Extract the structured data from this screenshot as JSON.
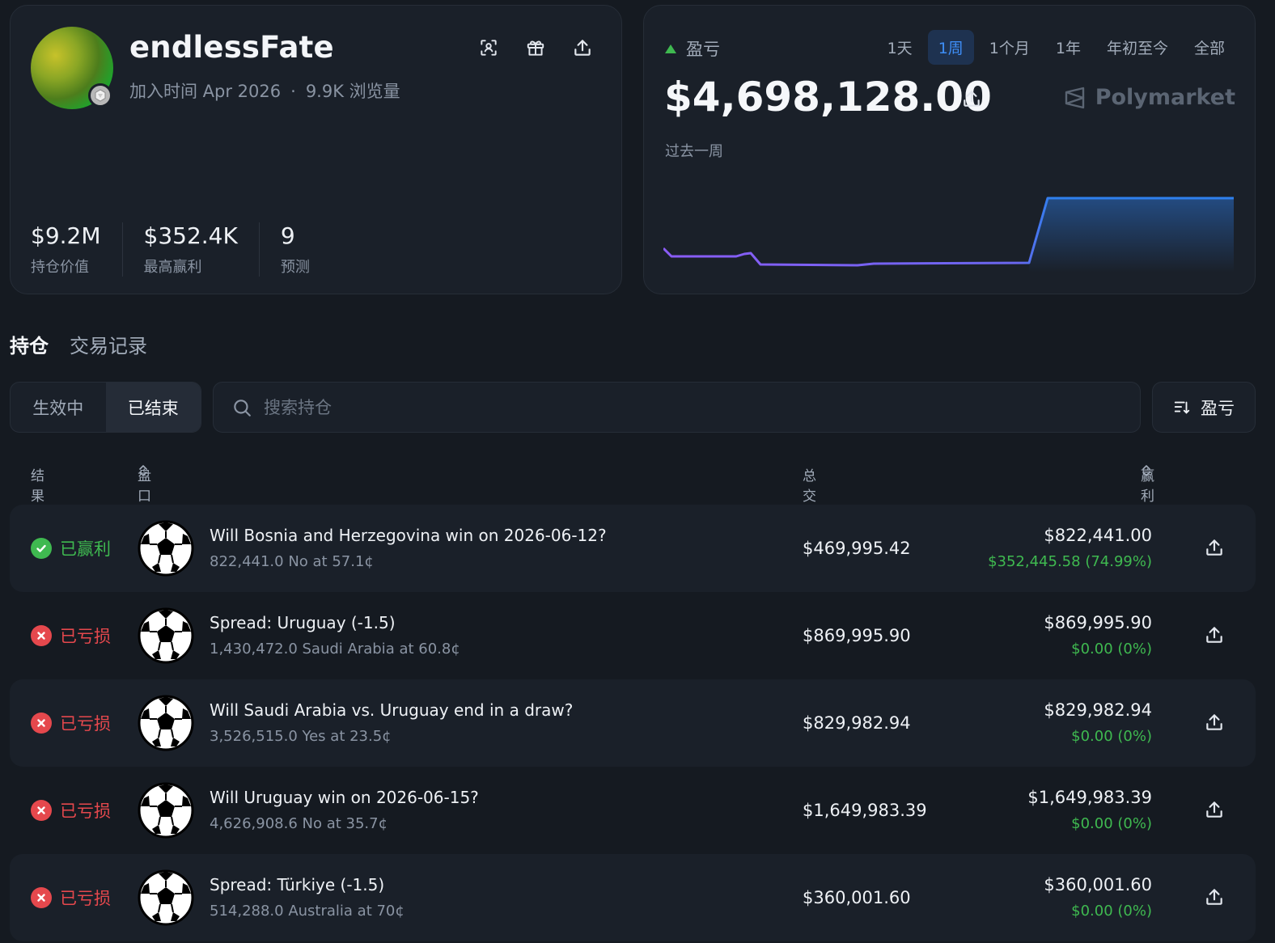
{
  "profile": {
    "username": "endlessFate",
    "joined": "加入时间 Apr 2026",
    "views": "9.9K 浏览量",
    "stats": [
      {
        "value": "$9.2M",
        "label": "持仓价值"
      },
      {
        "value": "$352.4K",
        "label": "最高赢利"
      },
      {
        "value": "9",
        "label": "预测"
      }
    ]
  },
  "pnl": {
    "label": "盈亏",
    "ranges": [
      "1天",
      "1周",
      "1个月",
      "1年",
      "年初至今",
      "全部"
    ],
    "active_range": "1周",
    "value": "$4,698,128.00",
    "brand": "Polymarket",
    "period": "过去一周",
    "line_colors": {
      "start": "#8b5cf6",
      "end": "#2f80ed"
    }
  },
  "tabs": [
    "持仓",
    "交易记录"
  ],
  "segment": [
    "生效中",
    "已结束"
  ],
  "search": {
    "placeholder": "搜索持仓"
  },
  "sort": {
    "label": "盈亏"
  },
  "table": {
    "headers": {
      "result": "结果",
      "market": "盘口",
      "traded": "总交易金额",
      "won": "赢利金额"
    },
    "rows": [
      {
        "status": "已赢利",
        "result": "win",
        "title": "Will Bosnia and Herzegovina win on 2026-06-12?",
        "sub": "822,441.0 No at 57.1¢",
        "traded": "$469,995.42",
        "won": "$822,441.00",
        "gain": "$352,445.58 (74.99%)"
      },
      {
        "status": "已亏损",
        "result": "loss",
        "title": "Spread: Uruguay (-1.5)",
        "sub": "1,430,472.0 Saudi Arabia at 60.8¢",
        "traded": "$869,995.90",
        "won": "$869,995.90",
        "gain": "$0.00 (0%)"
      },
      {
        "status": "已亏损",
        "result": "loss",
        "title": "Will Saudi Arabia vs. Uruguay end in a draw?",
        "sub": "3,526,515.0 Yes at 23.5¢",
        "traded": "$829,982.94",
        "won": "$829,982.94",
        "gain": "$0.00 (0%)"
      },
      {
        "status": "已亏损",
        "result": "loss",
        "title": "Will Uruguay win on 2026-06-15?",
        "sub": "4,626,908.6 No at 35.7¢",
        "traded": "$1,649,983.39",
        "won": "$1,649,983.39",
        "gain": "$0.00 (0%)"
      },
      {
        "status": "已亏损",
        "result": "loss",
        "title": "Spread: Türkiye (-1.5)",
        "sub": "514,288.0 Australia at 70¢",
        "traded": "$360,001.60",
        "won": "$360,001.60",
        "gain": "$0.00 (0%)"
      }
    ]
  },
  "icons": {
    "header": [
      "scan-icon",
      "gift-icon",
      "share-icon"
    ],
    "row_action": "share-icon",
    "market": "soccer-ball-icon"
  }
}
